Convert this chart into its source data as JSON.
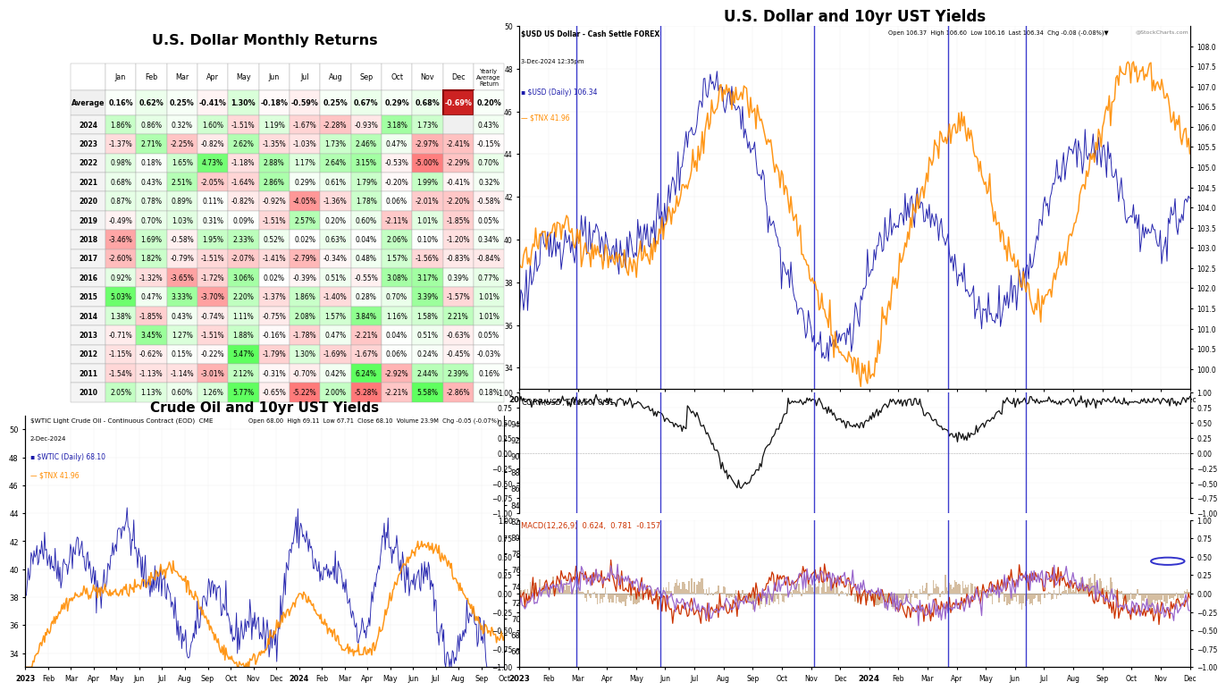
{
  "title_table": "U.S. Dollar Monthly Returns",
  "title_oil": "Crude Oil and 10yr UST Yields",
  "title_usd": "U.S. Dollar and 10yr UST Yields",
  "months": [
    "Jan",
    "Feb",
    "Mar",
    "Apr",
    "May",
    "Jun",
    "Jul",
    "Aug",
    "Sep",
    "Oct",
    "Nov",
    "Dec",
    "Yearly\nAverage\nReturn"
  ],
  "average_row": [
    0.16,
    0.62,
    0.25,
    -0.41,
    1.3,
    -0.18,
    -0.59,
    0.25,
    0.67,
    0.29,
    0.68,
    -0.69,
    0.2
  ],
  "years": [
    2024,
    2023,
    2022,
    2021,
    2020,
    2019,
    2018,
    2017,
    2016,
    2015,
    2014,
    2013,
    2012,
    2011,
    2010
  ],
  "data": [
    [
      1.86,
      0.86,
      0.32,
      1.6,
      -1.51,
      1.19,
      -1.67,
      -2.28,
      -0.93,
      3.18,
      1.73,
      null,
      0.43
    ],
    [
      -1.37,
      2.71,
      -2.25,
      -0.82,
      2.62,
      -1.35,
      -1.03,
      1.73,
      2.46,
      0.47,
      -2.97,
      -2.41,
      -0.15
    ],
    [
      0.98,
      0.18,
      1.65,
      4.73,
      -1.18,
      2.88,
      1.17,
      2.64,
      3.15,
      -0.53,
      -5.0,
      -2.29,
      0.7
    ],
    [
      0.68,
      0.43,
      2.51,
      -2.05,
      -1.64,
      2.86,
      0.29,
      0.61,
      1.79,
      -0.2,
      1.99,
      -0.41,
      0.32
    ],
    [
      0.87,
      0.78,
      0.89,
      0.11,
      -0.82,
      -0.92,
      -4.05,
      -1.36,
      1.78,
      0.06,
      -2.01,
      -2.2,
      -0.58
    ],
    [
      -0.49,
      0.7,
      1.03,
      0.31,
      0.09,
      -1.51,
      2.57,
      0.2,
      0.6,
      -2.11,
      1.01,
      -1.85,
      0.05
    ],
    [
      -3.46,
      1.69,
      -0.58,
      1.95,
      2.33,
      0.52,
      0.02,
      0.63,
      0.04,
      2.06,
      0.1,
      -1.2,
      0.34
    ],
    [
      -2.6,
      1.82,
      -0.79,
      -1.51,
      -2.07,
      -1.41,
      -2.79,
      -0.34,
      0.48,
      1.57,
      -1.56,
      -0.83,
      -0.84
    ],
    [
      0.92,
      -1.32,
      -3.65,
      -1.72,
      3.06,
      0.02,
      -0.39,
      0.51,
      -0.55,
      3.08,
      3.17,
      0.39,
      0.77
    ],
    [
      5.03,
      0.47,
      3.33,
      -3.7,
      2.2,
      -1.37,
      1.86,
      -1.4,
      0.28,
      0.7,
      3.39,
      -1.57,
      1.01
    ],
    [
      1.38,
      -1.85,
      0.43,
      -0.74,
      1.11,
      -0.75,
      2.08,
      1.57,
      3.84,
      1.16,
      1.58,
      2.21,
      1.01
    ],
    [
      -0.71,
      3.45,
      1.27,
      -1.51,
      1.88,
      -0.16,
      -1.78,
      0.47,
      -2.21,
      0.04,
      0.51,
      -0.63,
      0.05
    ],
    [
      -1.15,
      -0.62,
      0.15,
      -0.22,
      5.47,
      -1.79,
      1.3,
      -1.69,
      -1.67,
      0.06,
      0.24,
      -0.45,
      -0.03
    ],
    [
      -1.54,
      -1.13,
      -1.14,
      -3.01,
      2.12,
      -0.31,
      -0.7,
      0.42,
      6.24,
      -2.92,
      2.44,
      2.39,
      0.16
    ],
    [
      2.05,
      1.13,
      0.6,
      1.26,
      5.77,
      -0.65,
      -5.22,
      2.0,
      -5.28,
      -2.21,
      5.58,
      -2.86,
      0.18
    ]
  ],
  "blue_line": "#1a1aaa",
  "orange_line": "#ff8c00",
  "vline_color": "#3333cc",
  "macd_line": "#cc3300",
  "macd_signal": "#9966cc",
  "macd_hist": "#c8a882",
  "corr_line": "#111111"
}
